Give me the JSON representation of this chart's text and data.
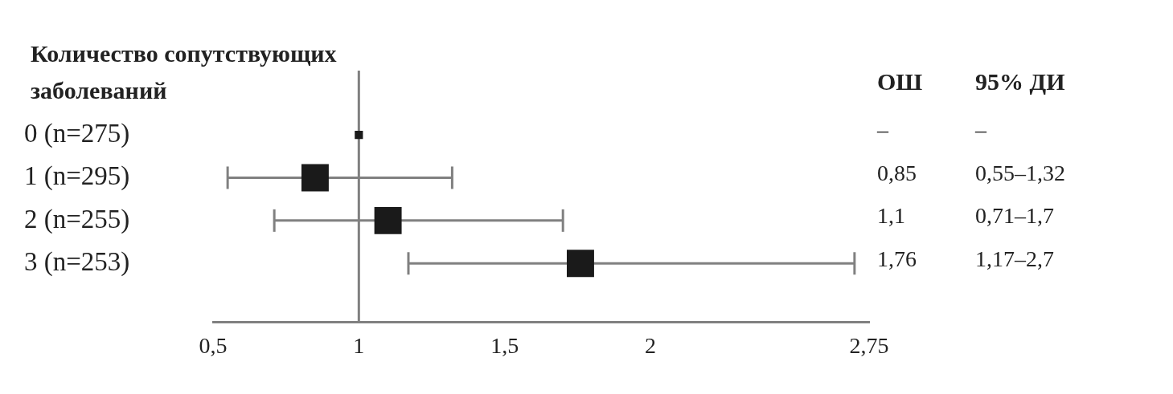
{
  "chart_data": {
    "type": "bubble",
    "orientation": "horizontal",
    "title": "Количество сопутствующих заболеваний",
    "categories": [
      "0 (n=275)",
      "1 (n=295)",
      "2 (n=255)",
      "3 (n=253)"
    ],
    "values": [
      1,
      0.85,
      1.1,
      1.76
    ],
    "sizes": [
      0.09,
      1,
      1,
      1
    ],
    "errors": [
      null,
      [
        0.55,
        1.32
      ],
      [
        0.71,
        1.7
      ],
      [
        1.17,
        2.7
      ]
    ],
    "color": "#1a1a1a",
    "marker": "square",
    "xlim": [
      0.5,
      2.75
    ],
    "xticks": [
      {
        "value": 0.5,
        "label": "0,5"
      },
      1,
      {
        "value": 1.5,
        "label": "1,5"
      },
      2,
      {
        "value": 2.75,
        "label": "2,75"
      }
    ],
    "ref_lines": [
      {
        "axis": "x",
        "value": 1,
        "color": "#808080"
      }
    ],
    "annotations": [
      "ОШ",
      "95% ДИ",
      "–",
      "–",
      "0,85",
      "0,55–1,32",
      "1,1",
      "0,71–1,7",
      "1,76",
      "1,17–2,7"
    ],
    "grid": false,
    "legend": false
  }
}
